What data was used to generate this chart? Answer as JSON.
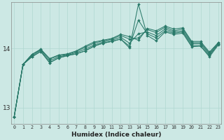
{
  "xlabel": "Humidex (Indice chaleur)",
  "bg_color": "#cce8e4",
  "grid_color": "#b0d8d0",
  "line_color": "#2a7a6a",
  "marker_color": "#2a7a6a",
  "yticks": [
    13,
    14
  ],
  "xtick_labels": [
    "0",
    "1",
    "2",
    "3",
    "4",
    "5",
    "6",
    "7",
    "8",
    "9",
    "10",
    "11",
    "12",
    "13",
    "14",
    "15",
    "16",
    "17",
    "18",
    "19",
    "20",
    "21",
    "22",
    "23"
  ],
  "xlim": [
    -0.3,
    23.3
  ],
  "ylim": [
    12.72,
    14.78
  ],
  "series": [
    [
      12.84,
      13.73,
      13.86,
      13.95,
      13.76,
      13.84,
      13.88,
      13.91,
      13.96,
      14.04,
      14.09,
      14.12,
      14.16,
      14.01,
      14.75,
      14.22,
      14.13,
      14.28,
      14.24,
      14.26,
      14.03,
      14.04,
      13.86,
      14.06
    ],
    [
      12.84,
      13.73,
      13.86,
      13.95,
      13.76,
      13.84,
      13.88,
      13.91,
      13.96,
      14.04,
      14.09,
      14.12,
      14.16,
      14.04,
      14.48,
      14.25,
      14.18,
      14.3,
      14.26,
      14.28,
      14.05,
      14.05,
      13.88,
      14.08
    ],
    [
      12.84,
      13.73,
      13.88,
      13.97,
      13.79,
      13.86,
      13.89,
      13.93,
      13.99,
      14.06,
      14.11,
      14.14,
      14.19,
      14.09,
      14.25,
      14.28,
      14.22,
      14.33,
      14.28,
      14.3,
      14.08,
      14.08,
      13.9,
      14.08
    ],
    [
      12.84,
      13.73,
      13.9,
      13.98,
      13.82,
      13.88,
      13.9,
      13.95,
      14.02,
      14.09,
      14.13,
      14.16,
      14.22,
      14.16,
      14.18,
      14.32,
      14.27,
      14.36,
      14.3,
      14.33,
      14.1,
      14.1,
      13.92,
      14.1
    ],
    [
      12.84,
      13.73,
      13.9,
      13.99,
      13.83,
      13.89,
      13.91,
      13.96,
      14.04,
      14.11,
      14.14,
      14.17,
      14.24,
      14.2,
      14.14,
      14.34,
      14.3,
      14.38,
      14.33,
      14.35,
      14.12,
      14.12,
      13.94,
      14.1
    ]
  ]
}
